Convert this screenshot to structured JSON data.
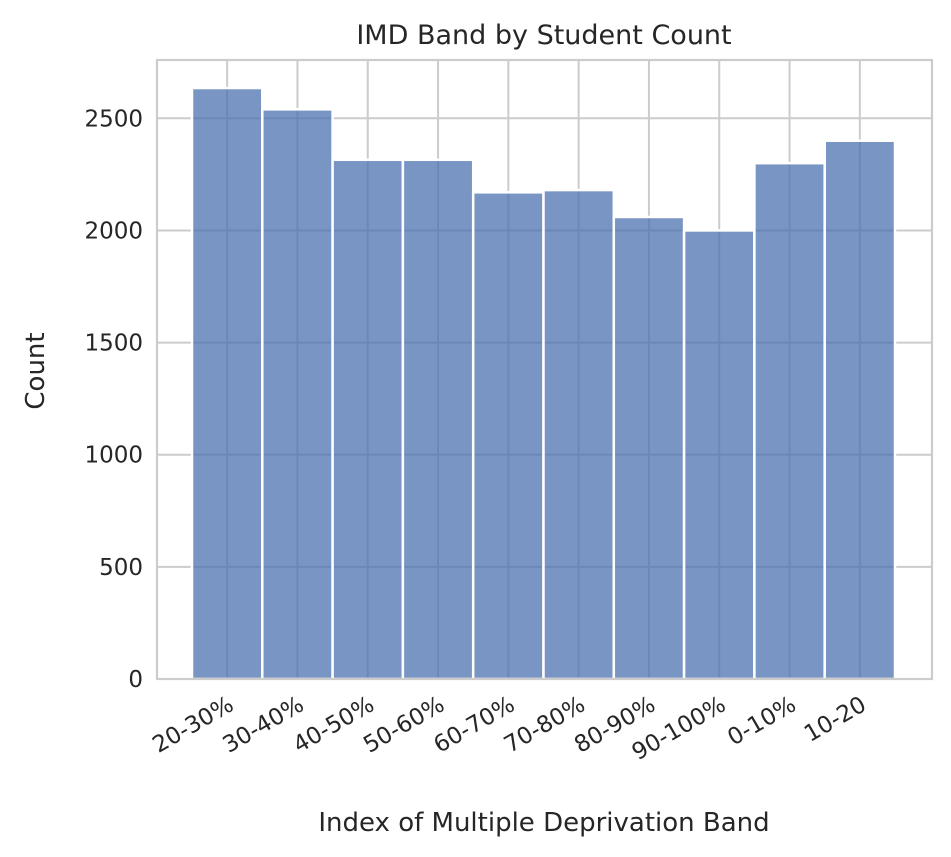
{
  "chart_data": {
    "type": "bar",
    "title": "IMD Band by Student Count",
    "xlabel": "Index of Multiple Deprivation Band",
    "ylabel": "Count",
    "categories": [
      "20-30%",
      "30-40%",
      "40-50%",
      "50-60%",
      "60-70%",
      "70-80%",
      "80-90%",
      "90-100%",
      "0-10%",
      "10-20"
    ],
    "values": [
      2635,
      2540,
      2315,
      2315,
      2170,
      2180,
      2060,
      2000,
      2300,
      2400
    ],
    "ylim": [
      0,
      2760
    ],
    "yticks": [
      0,
      500,
      1000,
      1500,
      2000,
      2500
    ],
    "grid": true,
    "bar_color": "#4c72b0",
    "bar_opacity": 0.75,
    "grid_color": "#cccccc"
  }
}
